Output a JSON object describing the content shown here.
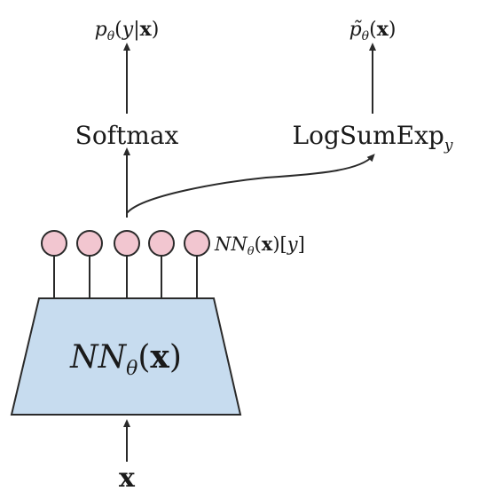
{
  "labels": {
    "output_left": "p_θ(y|x)",
    "output_right": "p̃_θ(x)",
    "softmax": "Softmax",
    "logsumexp": "LogSumExp",
    "logsumexp_sub": "y",
    "logits": "NN_θ(x)[y]",
    "network": "NN_θ(x)",
    "input": "x"
  },
  "colors": {
    "network_fill": "#c7dcef",
    "node_fill": "#f2c6d0",
    "stroke": "#2a2a2a"
  },
  "output_nodes_count": 5
}
